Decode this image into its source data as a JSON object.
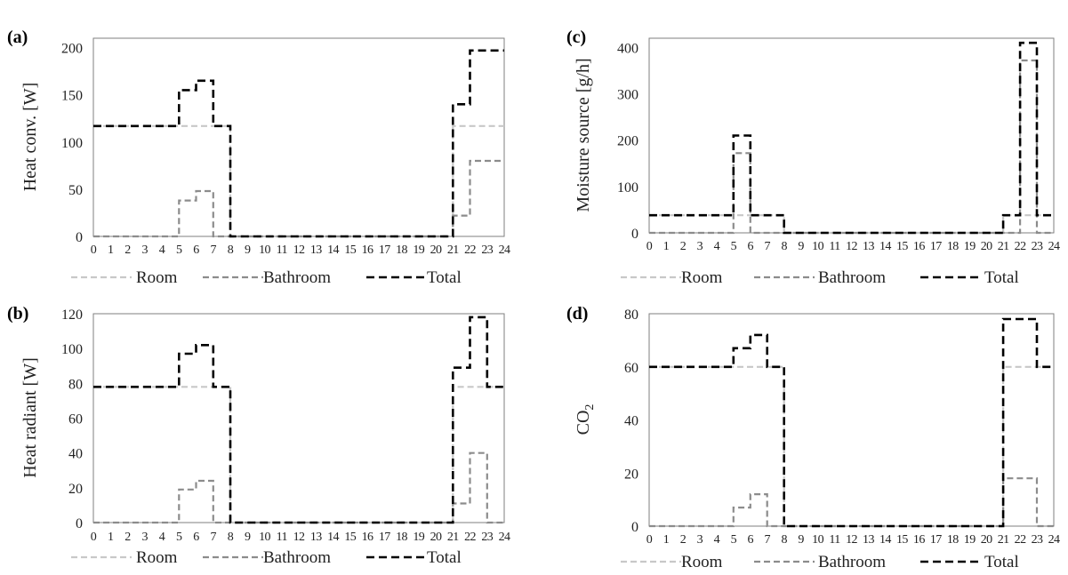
{
  "legend": [
    "Room",
    "Bathroom",
    "Total"
  ],
  "colors": {
    "room": "#c8c8c8",
    "bathroom": "#8c8c8c",
    "total": "#000000",
    "axis": "#7f7f7f"
  },
  "chart_data": [
    {
      "type": "line",
      "panel_label": "(a)",
      "ylabel": "Heat conv. [W]",
      "ylim": [
        0,
        210
      ],
      "yticks": [
        0,
        50,
        100,
        150,
        200
      ],
      "x": [
        0,
        1,
        2,
        3,
        4,
        5,
        6,
        7,
        8,
        9,
        10,
        11,
        12,
        13,
        14,
        15,
        16,
        17,
        18,
        19,
        20,
        21,
        22,
        23
      ],
      "xticks": [
        "0",
        "1",
        "2",
        "3",
        "4",
        "5",
        "6",
        "7",
        "8",
        "9",
        "10",
        "11",
        "12",
        "13",
        "14",
        "15",
        "16",
        "17",
        "18",
        "19",
        "20",
        "21",
        "22",
        "23",
        "24"
      ],
      "series": [
        {
          "name": "Room",
          "values": [
            117,
            117,
            117,
            117,
            117,
            117,
            117,
            117,
            0,
            0,
            0,
            0,
            0,
            0,
            0,
            0,
            0,
            0,
            0,
            0,
            0,
            117,
            117,
            117
          ]
        },
        {
          "name": "Bathroom",
          "values": [
            0,
            0,
            0,
            0,
            0,
            38,
            48,
            0,
            0,
            0,
            0,
            0,
            0,
            0,
            0,
            0,
            0,
            0,
            0,
            0,
            0,
            22,
            80,
            80
          ]
        },
        {
          "name": "Total",
          "values": [
            117,
            117,
            117,
            117,
            117,
            155,
            165,
            117,
            0,
            0,
            0,
            0,
            0,
            0,
            0,
            0,
            0,
            0,
            0,
            0,
            0,
            140,
            197,
            197
          ]
        }
      ]
    },
    {
      "type": "line",
      "panel_label": "(b)",
      "ylabel": "Heat radiant [W]",
      "ylim": [
        0,
        120
      ],
      "yticks": [
        0,
        20,
        40,
        60,
        80,
        100,
        120
      ],
      "x": [
        0,
        1,
        2,
        3,
        4,
        5,
        6,
        7,
        8,
        9,
        10,
        11,
        12,
        13,
        14,
        15,
        16,
        17,
        18,
        19,
        20,
        21,
        22,
        23
      ],
      "xticks": [
        "0",
        "1",
        "2",
        "3",
        "4",
        "5",
        "6",
        "7",
        "8",
        "9",
        "10",
        "11",
        "12",
        "13",
        "14",
        "15",
        "16",
        "17",
        "18",
        "19",
        "20",
        "21",
        "22",
        "23",
        "24"
      ],
      "series": [
        {
          "name": "Room",
          "values": [
            78,
            78,
            78,
            78,
            78,
            78,
            78,
            78,
            0,
            0,
            0,
            0,
            0,
            0,
            0,
            0,
            0,
            0,
            0,
            0,
            0,
            78,
            78,
            78
          ]
        },
        {
          "name": "Bathroom",
          "values": [
            0,
            0,
            0,
            0,
            0,
            19,
            24,
            0,
            0,
            0,
            0,
            0,
            0,
            0,
            0,
            0,
            0,
            0,
            0,
            0,
            0,
            11,
            40,
            0
          ]
        },
        {
          "name": "Total",
          "values": [
            78,
            78,
            78,
            78,
            78,
            97,
            102,
            78,
            0,
            0,
            0,
            0,
            0,
            0,
            0,
            0,
            0,
            0,
            0,
            0,
            0,
            89,
            118,
            78
          ]
        }
      ]
    },
    {
      "type": "line",
      "panel_label": "(c)",
      "ylabel": "Moisture source [g/h]",
      "ylim": [
        0,
        420
      ],
      "yticks": [
        0,
        100,
        200,
        300,
        400
      ],
      "x": [
        0,
        1,
        2,
        3,
        4,
        5,
        6,
        7,
        8,
        9,
        10,
        11,
        12,
        13,
        14,
        15,
        16,
        17,
        18,
        19,
        20,
        21,
        22,
        23
      ],
      "xticks": [
        "0",
        "1",
        "2",
        "3",
        "4",
        "5",
        "6",
        "7",
        "8",
        "9",
        "10",
        "11",
        "12",
        "13",
        "14",
        "15",
        "16",
        "17",
        "18",
        "19",
        "20",
        "21",
        "22",
        "23",
        "24"
      ],
      "series": [
        {
          "name": "Room",
          "values": [
            38,
            38,
            38,
            38,
            38,
            38,
            38,
            38,
            0,
            0,
            0,
            0,
            0,
            0,
            0,
            0,
            0,
            0,
            0,
            0,
            0,
            38,
            38,
            38
          ]
        },
        {
          "name": "Bathroom",
          "values": [
            0,
            0,
            0,
            0,
            0,
            172,
            0,
            0,
            0,
            0,
            0,
            0,
            0,
            0,
            0,
            0,
            0,
            0,
            0,
            0,
            0,
            0,
            372,
            0
          ]
        },
        {
          "name": "Total",
          "values": [
            38,
            38,
            38,
            38,
            38,
            210,
            38,
            38,
            0,
            0,
            0,
            0,
            0,
            0,
            0,
            0,
            0,
            0,
            0,
            0,
            0,
            38,
            410,
            38
          ]
        }
      ]
    },
    {
      "type": "line",
      "panel_label": "(d)",
      "ylabel": "CO",
      "ylabel_sub": "2",
      "ylim": [
        0,
        80
      ],
      "yticks": [
        0,
        20,
        40,
        60,
        80
      ],
      "x": [
        0,
        1,
        2,
        3,
        4,
        5,
        6,
        7,
        8,
        9,
        10,
        11,
        12,
        13,
        14,
        15,
        16,
        17,
        18,
        19,
        20,
        21,
        22,
        23
      ],
      "xticks": [
        "0",
        "1",
        "2",
        "3",
        "4",
        "5",
        "6",
        "7",
        "8",
        "9",
        "10",
        "11",
        "12",
        "13",
        "14",
        "15",
        "16",
        "17",
        "18",
        "19",
        "20",
        "21",
        "22",
        "23",
        "24"
      ],
      "series": [
        {
          "name": "Room",
          "values": [
            60,
            60,
            60,
            60,
            60,
            60,
            60,
            60,
            0,
            0,
            0,
            0,
            0,
            0,
            0,
            0,
            0,
            0,
            0,
            0,
            0,
            60,
            60,
            60
          ]
        },
        {
          "name": "Bathroom",
          "values": [
            0,
            0,
            0,
            0,
            0,
            7,
            12,
            0,
            0,
            0,
            0,
            0,
            0,
            0,
            0,
            0,
            0,
            0,
            0,
            0,
            0,
            18,
            18,
            0
          ]
        },
        {
          "name": "Total",
          "values": [
            60,
            60,
            60,
            60,
            60,
            67,
            72,
            60,
            0,
            0,
            0,
            0,
            0,
            0,
            0,
            0,
            0,
            0,
            0,
            0,
            0,
            78,
            78,
            60
          ]
        }
      ]
    }
  ]
}
